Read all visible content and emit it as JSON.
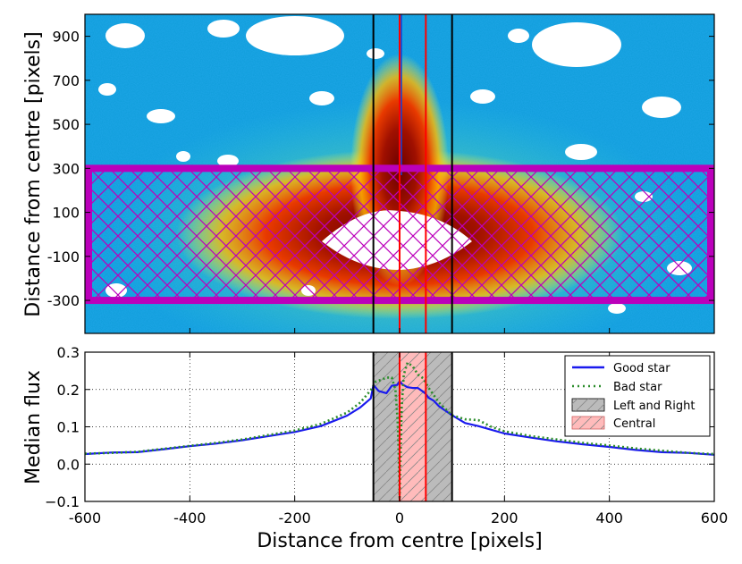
{
  "chart_data": [
    {
      "type": "heatmap",
      "ylabel": "Distance from centre [pixels]",
      "xlim": [
        -600,
        600
      ],
      "ylim": [
        -450,
        1000
      ],
      "yticks": [
        "900",
        "700",
        "500",
        "300",
        "100",
        "-100",
        "-300"
      ],
      "ytick_values": [
        900,
        700,
        500,
        300,
        100,
        -100,
        -300
      ],
      "colormap": "jet",
      "region_box": {
        "x_range": [
          -600,
          600
        ],
        "y_range": [
          -300,
          300
        ],
        "edge_color": "#bb00bb",
        "hatch": "x"
      },
      "vertical_lines": [
        {
          "x": -50,
          "color": "#000000"
        },
        {
          "x": 0,
          "color": "#ff0000"
        },
        {
          "x": 50,
          "color": "#ff0000"
        },
        {
          "x": 100,
          "color": "#000000"
        }
      ]
    },
    {
      "type": "line",
      "xlabel": "Distance from centre [pixels]",
      "ylabel": "Median flux",
      "xlim": [
        -600,
        600
      ],
      "ylim": [
        -0.1,
        0.3
      ],
      "xticks": [
        "-600",
        "-400",
        "-200",
        "0",
        "200",
        "400",
        "600"
      ],
      "xtick_values": [
        -600,
        -400,
        -200,
        0,
        200,
        400,
        600
      ],
      "yticks": [
        "0.3",
        "0.2",
        "0.1",
        "0.0",
        "−0.1"
      ],
      "ytick_values": [
        0.3,
        0.2,
        0.1,
        0.0,
        -0.1
      ],
      "grid": true,
      "legend_position": "top-right",
      "series": [
        {
          "name": "Good star",
          "color": "#1a1aee",
          "style": "solid",
          "x": [
            -600,
            -550,
            -500,
            -450,
            -400,
            -350,
            -300,
            -250,
            -200,
            -150,
            -100,
            -75,
            -55,
            -50,
            -40,
            -25,
            -15,
            -5,
            0,
            5,
            15,
            25,
            35,
            45,
            50,
            55,
            65,
            75,
            100,
            125,
            150,
            200,
            250,
            300,
            350,
            400,
            450,
            500,
            550,
            600
          ],
          "y": [
            0.027,
            0.031,
            0.032,
            0.04,
            0.048,
            0.055,
            0.064,
            0.075,
            0.086,
            0.102,
            0.13,
            0.152,
            0.176,
            0.212,
            0.196,
            0.19,
            0.21,
            0.212,
            0.222,
            0.214,
            0.206,
            0.204,
            0.204,
            0.194,
            0.188,
            0.178,
            0.17,
            0.155,
            0.131,
            0.11,
            0.102,
            0.082,
            0.071,
            0.061,
            0.053,
            0.046,
            0.038,
            0.032,
            0.03,
            0.025
          ]
        },
        {
          "name": "Bad star",
          "color": "#2a8c2a",
          "style": "dotted",
          "x": [
            -600,
            -550,
            -500,
            -450,
            -400,
            -350,
            -300,
            -250,
            -200,
            -150,
            -100,
            -75,
            -55,
            -45,
            -35,
            -25,
            -15,
            -8,
            -4,
            -2,
            0,
            2,
            4,
            8,
            15,
            25,
            35,
            45,
            55,
            75,
            100,
            125,
            150,
            175,
            200,
            250,
            300,
            350,
            400,
            450,
            500,
            550,
            600
          ],
          "y": [
            0.028,
            0.03,
            0.033,
            0.041,
            0.049,
            0.057,
            0.066,
            0.078,
            0.09,
            0.108,
            0.138,
            0.165,
            0.198,
            0.222,
            0.226,
            0.232,
            0.232,
            0.2,
            0.12,
            0.04,
            -0.09,
            0.04,
            0.15,
            0.24,
            0.272,
            0.262,
            0.24,
            0.23,
            0.205,
            0.165,
            0.131,
            0.12,
            0.118,
            0.1,
            0.088,
            0.075,
            0.066,
            0.057,
            0.05,
            0.042,
            0.036,
            0.03,
            0.027
          ]
        }
      ],
      "shaded_regions": [
        {
          "name": "Left and Right",
          "x_range": [
            -50,
            100
          ],
          "color": "#bbbbbb",
          "hatch": "/"
        },
        {
          "name": "Central",
          "x_range": [
            0,
            50
          ],
          "color": "#ffbbbb",
          "hatch": "/"
        }
      ],
      "vertical_lines": [
        {
          "x": -50,
          "color": "#000000"
        },
        {
          "x": 0,
          "color": "#ff0000"
        },
        {
          "x": 50,
          "color": "#ff0000"
        },
        {
          "x": 100,
          "color": "#000000"
        }
      ]
    }
  ]
}
